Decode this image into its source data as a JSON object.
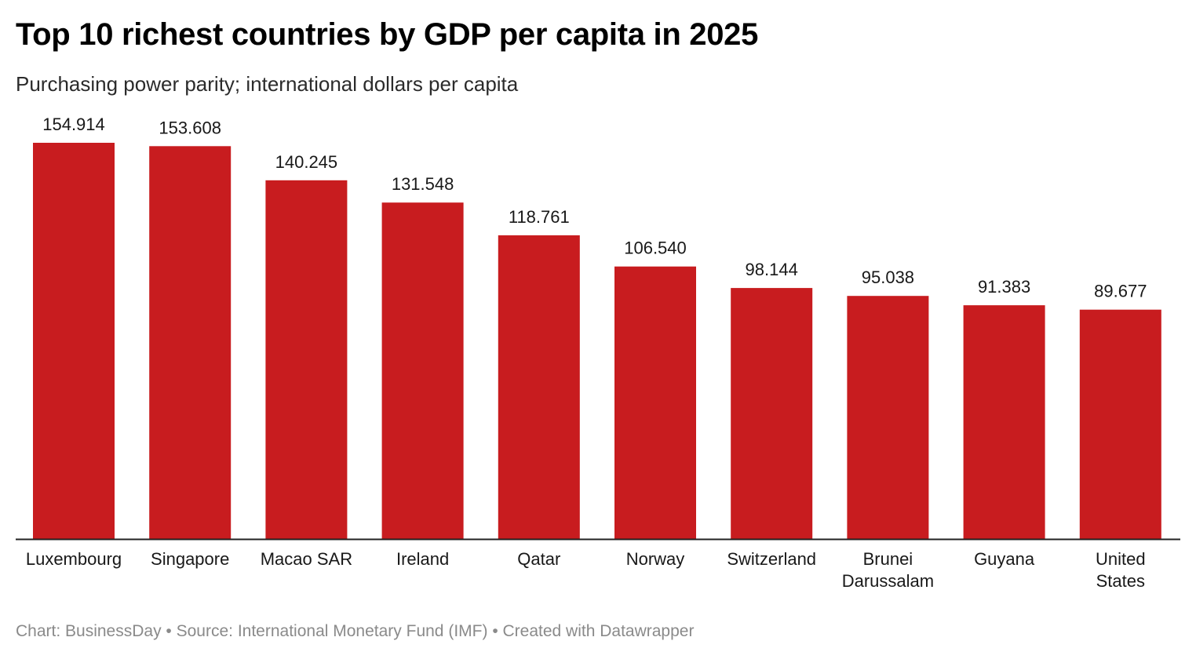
{
  "title": "Top 10 richest countries by GDP per capita in 2025",
  "subtitle": "Purchasing power parity; international dollars per capita",
  "footer": {
    "chart_label": "Chart: BusinessDay",
    "source": "Source: International Monetary Fund (IMF)",
    "created": "Created with Datawrapper",
    "separator": "•"
  },
  "colors": {
    "bar": "#c81c1f",
    "axis": "#222222",
    "label_text": "#181818"
  },
  "chart_data": {
    "type": "bar",
    "title": "Top 10 richest countries by GDP per capita in 2025",
    "subtitle": "Purchasing power parity; international dollars per capita",
    "categories": [
      [
        "Luxembourg"
      ],
      [
        "Singapore"
      ],
      [
        "Macao SAR"
      ],
      [
        "Ireland"
      ],
      [
        "Qatar"
      ],
      [
        "Norway"
      ],
      [
        "Switzerland"
      ],
      [
        "Brunei",
        "Darussalam"
      ],
      [
        "Guyana"
      ],
      [
        "United",
        "States"
      ]
    ],
    "values": [
      154.914,
      153.608,
      140.245,
      131.548,
      118.761,
      106.54,
      98.144,
      95.038,
      91.383,
      89.677
    ],
    "value_labels": [
      "154.914",
      "153.608",
      "140.245",
      "131.548",
      "118.761",
      "106.540",
      "98.144",
      "95.038",
      "91.383",
      "89.677"
    ],
    "ylim": [
      0,
      154.914
    ],
    "grid": false,
    "legend": "none",
    "data_labels": "above"
  }
}
